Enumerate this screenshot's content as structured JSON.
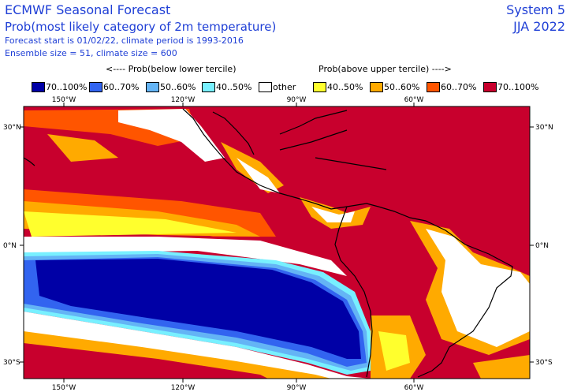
{
  "header": {
    "title": "ECMWF Seasonal Forecast",
    "subtitle": "Prob(most likely category of 2m temperature)",
    "line3": "Forecast start is 01/02/22, climate period is 1993-2016",
    "line4": "Ensemble size = 51, climate size = 600",
    "system": "System 5",
    "season": "JJA 2022"
  },
  "legend": {
    "below_label": "<---- Prob(below lower tercile)",
    "above_label": "Prob(above upper tercile) ---->",
    "items": [
      {
        "label": "70..100%",
        "color": "#0000a6"
      },
      {
        "label": "60..70%",
        "color": "#3264f0"
      },
      {
        "label": "50..60%",
        "color": "#64b4f5"
      },
      {
        "label": "40..50%",
        "color": "#78f0ff"
      },
      {
        "label": "other",
        "color": "#ffffff"
      },
      {
        "label": "40..50%",
        "color": "#ffff2d"
      },
      {
        "label": "50..60%",
        "color": "#ffaa00"
      },
      {
        "label": "60..70%",
        "color": "#ff5500"
      },
      {
        "label": "70..100%",
        "color": "#c8002d"
      }
    ]
  },
  "axes": {
    "lon_ticks": [
      "150°W",
      "120°W",
      "90°W",
      "60°W"
    ],
    "lat_ticks_left": [
      "30°N",
      "0°N",
      "30°S"
    ],
    "lat_ticks_right": [
      "30°N",
      "0°N",
      "30°S"
    ]
  }
}
